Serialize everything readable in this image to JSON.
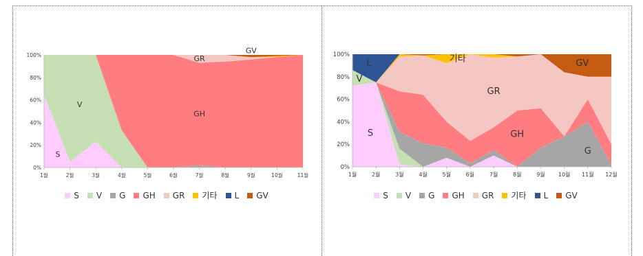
{
  "chart_data": [
    {
      "type": "area",
      "stacked": true,
      "normalized": true,
      "categories": [
        "1월",
        "2월",
        "3월",
        "4월",
        "5월",
        "6월",
        "7월",
        "8월",
        "9월",
        "10월",
        "11월"
      ],
      "yticks": [
        "0%",
        "20%",
        "40%",
        "60%",
        "80%",
        "100%"
      ],
      "ylim": [
        0,
        100
      ],
      "grid": false,
      "legend_position": "bottom",
      "series": [
        {
          "name": "S",
          "color": "#ffccff",
          "values": [
            65,
            5,
            23,
            0,
            0,
            0,
            0,
            0,
            0,
            0,
            0
          ]
        },
        {
          "name": "V",
          "color": "#c6e0b4",
          "values": [
            35,
            95,
            77,
            33,
            0,
            0,
            0,
            0,
            0,
            0,
            0
          ]
        },
        {
          "name": "G",
          "color": "#a6a6a6",
          "values": [
            0,
            0,
            0,
            0,
            0,
            0,
            2,
            0,
            0,
            0,
            0
          ]
        },
        {
          "name": "GH",
          "color": "#ff7c80",
          "values": [
            0,
            0,
            0,
            67,
            100,
            100,
            91,
            94,
            96,
            98,
            100
          ]
        },
        {
          "name": "GR",
          "color": "#f4c7c3",
          "values": [
            0,
            0,
            0,
            0,
            0,
            0,
            7,
            6,
            2,
            0,
            0
          ]
        },
        {
          "name": "기타",
          "color": "#ffc000",
          "values": [
            0,
            0,
            0,
            0,
            0,
            0,
            0,
            0,
            0,
            1,
            0
          ]
        },
        {
          "name": "L",
          "color": "#2f5597",
          "values": [
            0,
            0,
            0,
            0,
            0,
            0,
            0,
            0,
            0,
            0,
            0
          ]
        },
        {
          "name": "GV",
          "color": "#c55a11",
          "values": [
            0,
            0,
            0,
            0,
            0,
            0,
            0,
            0,
            2,
            1,
            0
          ]
        }
      ],
      "annotations": [
        {
          "text": "S",
          "x": "1월",
          "y": 12
        },
        {
          "text": "V",
          "x": "2월",
          "y": 56
        },
        {
          "text": "GH",
          "x": "7월",
          "y": 48
        },
        {
          "text": "GR",
          "x": "7월",
          "y": 97
        },
        {
          "text": "GV",
          "x": "9월",
          "y": 104
        }
      ]
    },
    {
      "type": "area",
      "stacked": true,
      "normalized": true,
      "categories": [
        "1월",
        "2월",
        "3월",
        "4월",
        "5월",
        "6월",
        "7월",
        "8월",
        "9월",
        "10월",
        "11월",
        "12월"
      ],
      "yticks": [
        "0%",
        "20%",
        "40%",
        "60%",
        "80%",
        "100%"
      ],
      "ylim": [
        0,
        100
      ],
      "grid": false,
      "legend_position": "bottom",
      "series": [
        {
          "name": "S",
          "color": "#ffccff",
          "values": [
            72,
            75,
            2,
            0,
            8,
            0,
            10,
            0,
            0,
            0,
            0,
            0
          ]
        },
        {
          "name": "V",
          "color": "#c6e0b4",
          "values": [
            14,
            0,
            14,
            0,
            0,
            0,
            0,
            0,
            0,
            0,
            0,
            0
          ]
        },
        {
          "name": "G",
          "color": "#a6a6a6",
          "values": [
            0,
            0,
            15,
            21,
            9,
            3,
            5,
            0,
            17,
            27,
            40,
            2
          ]
        },
        {
          "name": "GH",
          "color": "#ff7c80",
          "values": [
            0,
            0,
            36,
            43,
            23,
            20,
            20,
            50,
            35,
            0,
            20,
            18
          ]
        },
        {
          "name": "GR",
          "color": "#f4c7c3",
          "values": [
            0,
            0,
            31,
            35,
            52,
            77,
            62,
            48,
            48,
            57,
            20,
            60
          ]
        },
        {
          "name": "기타",
          "color": "#ffc000",
          "values": [
            0,
            0,
            2,
            0,
            8,
            0,
            3,
            0,
            0,
            0,
            0,
            0
          ]
        },
        {
          "name": "L",
          "color": "#2f5597",
          "values": [
            14,
            25,
            0,
            0,
            0,
            0,
            0,
            0,
            0,
            0,
            0,
            0
          ]
        },
        {
          "name": "GV",
          "color": "#c55a11",
          "values": [
            0,
            0,
            0,
            1,
            0,
            0,
            0,
            2,
            0,
            16,
            20,
            20
          ]
        }
      ],
      "annotations": [
        {
          "text": "L",
          "x": "1월",
          "y": 92
        },
        {
          "text": "V",
          "x": "1월",
          "y": 78
        },
        {
          "text": "S",
          "x": "1월",
          "y": 30
        },
        {
          "text": "기타",
          "x": "5월",
          "y": 96
        },
        {
          "text": "GR",
          "x": "7월",
          "y": 67
        },
        {
          "text": "GH",
          "x": "8월",
          "y": 29
        },
        {
          "text": "G",
          "x": "11월",
          "y": 14
        },
        {
          "text": "GV",
          "x": "11월",
          "y": 92
        }
      ]
    }
  ]
}
